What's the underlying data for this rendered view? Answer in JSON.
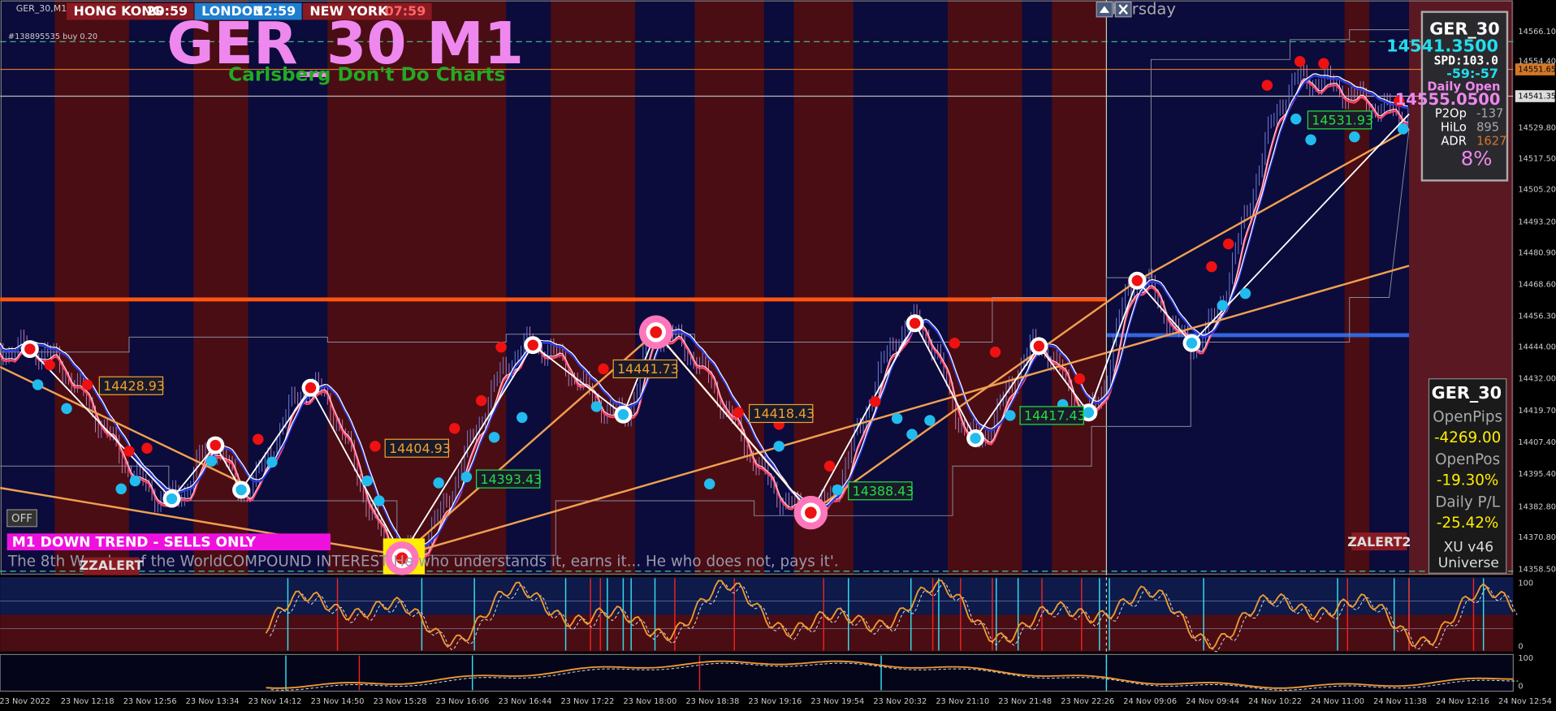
{
  "window": {
    "symbol": "GER_30,M1",
    "account_line": "#138895535 buy 0.20",
    "day": "Thursday"
  },
  "sessions": [
    {
      "name": "HONG KONG",
      "time": "20:59"
    },
    {
      "name": "LONDON",
      "time": "12:59"
    },
    {
      "name": "NEW YORK",
      "time": "07:59"
    }
  ],
  "header": {
    "title": "GER_30 M1",
    "subtitle": "Carlsberg Don't Do Charts"
  },
  "price_axis": [
    "14566.10",
    "14554.40",
    "14551.65",
    "14541.35",
    "14529.80",
    "14517.50",
    "14505.20",
    "14493.20",
    "14480.90",
    "14468.60",
    "14456.30",
    "14444.00",
    "14432.00",
    "14419.70",
    "14407.40",
    "14395.40",
    "14382.80",
    "14370.80",
    "14358.50"
  ],
  "chart_labels": [
    "14428.93",
    "14404.93",
    "14393.43",
    "14441.73",
    "14418.43",
    "14388.43",
    "14417.43",
    "14531.93"
  ],
  "info_panel": {
    "symbol": "GER_30",
    "price": "14541.3500",
    "spread": "SPD:103.0",
    "timer": "-59:-57",
    "daily_open_label": "Daily Open",
    "daily_open": "14555.0500",
    "rows": [
      {
        "label": "P2Op",
        "value": "-137"
      },
      {
        "label": "HiLo",
        "value": "895"
      },
      {
        "label": "ADR",
        "value": "1627"
      }
    ],
    "percent": "8%"
  },
  "trade_panel": {
    "symbol": "GER_30",
    "rows": [
      {
        "label": "OpenPips",
        "value": "-4269.00"
      },
      {
        "label": "OpenPos",
        "value": "-19.30%"
      },
      {
        "label": "Daily P/L",
        "value": "-25.42%"
      }
    ]
  },
  "footer": {
    "off": "OFF",
    "trend": "M1  DOWN TREND - SELLS ONLY",
    "quote": "The 8th Wonder of the WorldCOMPOUND INTEREST He who understands it, earns it... He who does not, pays it'.",
    "zzalert": "ZZALERT",
    "zalert2": "ZALERT2",
    "version": "XU v46",
    "universe": "Universe"
  },
  "indicator_axis": [
    "100",
    "0",
    "100",
    "0"
  ],
  "time_axis": [
    "23 Nov 2022",
    "23 Nov 12:18",
    "23 Nov 12:56",
    "23 Nov 13:34",
    "23 Nov 14:12",
    "23 Nov 14:50",
    "23 Nov 15:28",
    "23 Nov 16:06",
    "23 Nov 16:44",
    "23 Nov 17:22",
    "23 Nov 18:00",
    "23 Nov 18:38",
    "23 Nov 19:16",
    "23 Nov 19:54",
    "23 Nov 20:32",
    "23 Nov 21:10",
    "23 Nov 21:48",
    "23 Nov 22:26",
    "24 Nov 09:06",
    "24 Nov 09:44",
    "24 Nov 10:22",
    "24 Nov 11:00",
    "24 Nov 11:38",
    "24 Nov 12:16",
    "24 Nov 12:54"
  ]
}
